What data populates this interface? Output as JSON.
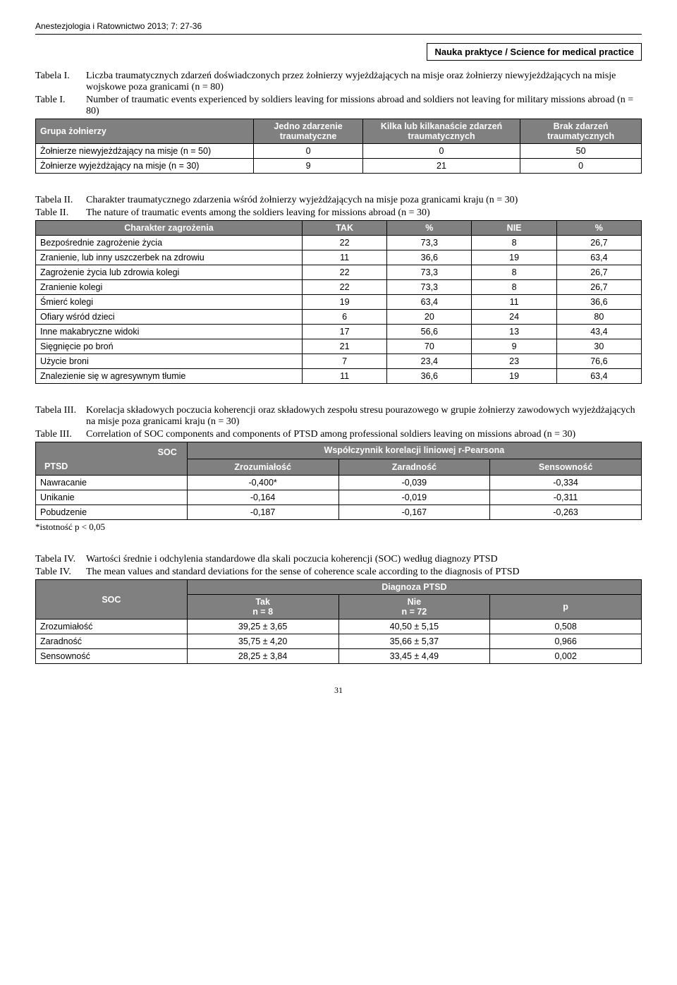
{
  "header": {
    "journal": "Anestezjologia i Ratownictwo 2013; 7: 27-36",
    "subtitle": "Nauka praktyce / Science for medical practice"
  },
  "table1": {
    "caption_pl_label": "Tabela I.",
    "caption_pl_text": "Liczba traumatycznych zdarzeń doświadczonych przez żołnierzy wyjeżdżających na misje oraz żołnierzy niewyjeżdżających na misje wojskowe poza granicami (n = 80)",
    "caption_en_label": "Table I.",
    "caption_en_text": "Number of traumatic events experienced by soldiers leaving for missions abroad and soldiers not leaving for military missions abroad (n = 80)",
    "headers": {
      "c0": "Grupa żołnierzy",
      "c1": "Jedno zdarzenie traumatyczne",
      "c2": "Kilka lub kilkanaście zdarzeń traumatycznych",
      "c3": "Brak zdarzeń traumatycznych"
    },
    "rows": [
      {
        "label": "Żołnierze niewyjeżdżający na misje (n = 50)",
        "v1": "0",
        "v2": "0",
        "v3": "50"
      },
      {
        "label": "Żołnierze wyjeżdżający na misje (n = 30)",
        "v1": "9",
        "v2": "21",
        "v3": "0"
      }
    ]
  },
  "table2": {
    "caption_pl_label": "Tabela II.",
    "caption_pl_text": "Charakter traumatycznego zdarzenia wśród żołnierzy wyjeżdżających na misje poza granicami kraju (n = 30)",
    "caption_en_label": "Table II.",
    "caption_en_text": "The nature of traumatic events among the soldiers leaving for missions abroad (n = 30)",
    "headers": {
      "c0": "Charakter zagrożenia",
      "c1": "TAK",
      "c2": "%",
      "c3": "NIE",
      "c4": "%"
    },
    "rows": [
      {
        "label": "Bezpośrednie zagrożenie życia",
        "v1": "22",
        "v2": "73,3",
        "v3": "8",
        "v4": "26,7"
      },
      {
        "label": "Zranienie, lub inny uszczerbek na zdrowiu",
        "v1": "11",
        "v2": "36,6",
        "v3": "19",
        "v4": "63,4"
      },
      {
        "label": "Zagrożenie życia lub zdrowia kolegi",
        "v1": "22",
        "v2": "73,3",
        "v3": "8",
        "v4": "26,7"
      },
      {
        "label": "Zranienie kolegi",
        "v1": "22",
        "v2": "73,3",
        "v3": "8",
        "v4": "26,7"
      },
      {
        "label": "Śmierć kolegi",
        "v1": "19",
        "v2": "63,4",
        "v3": "11",
        "v4": "36,6"
      },
      {
        "label": "Ofiary wśród dzieci",
        "v1": "6",
        "v2": "20",
        "v3": "24",
        "v4": "80"
      },
      {
        "label": "Inne makabryczne widoki",
        "v1": "17",
        "v2": "56,6",
        "v3": "13",
        "v4": "43,4"
      },
      {
        "label": "Sięgnięcie po broń",
        "v1": "21",
        "v2": "70",
        "v3": "9",
        "v4": "30"
      },
      {
        "label": "Użycie broni",
        "v1": "7",
        "v2": "23,4",
        "v3": "23",
        "v4": "76,6"
      },
      {
        "label": "Znalezienie się w agresywnym tłumie",
        "v1": "11",
        "v2": "36,6",
        "v3": "19",
        "v4": "63,4"
      }
    ]
  },
  "table3": {
    "caption_pl_label": "Tabela III.",
    "caption_pl_text": "Korelacja składowych poczucia koherencji oraz składowych zespołu stresu pourazowego w grupie żołnierzy zawodowych wyjeżdżających na misje poza granicami kraju (n = 30)",
    "caption_en_label": "Table III.",
    "caption_en_text": "Correlation of SOC components and components of PTSD among professional soldiers leaving on missions abroad (n = 30)",
    "super_header": "Współczynnik korelacji liniowej r-Pearsona",
    "corner_soc": "SOC",
    "corner_ptsd": "PTSD",
    "cols": {
      "c1": "Zrozumiałość",
      "c2": "Zaradność",
      "c3": "Sensowność"
    },
    "rows": [
      {
        "label": "Nawracanie",
        "v1": "-0,400*",
        "v2": "-0,039",
        "v3": "-0,334"
      },
      {
        "label": "Unikanie",
        "v1": "-0,164",
        "v2": "-0,019",
        "v3": "-0,311"
      },
      {
        "label": "Pobudzenie",
        "v1": "-0,187",
        "v2": "-0,167",
        "v3": "-0,263"
      }
    ],
    "footnote": "*istotność p < 0,05"
  },
  "table4": {
    "caption_pl_label": "Tabela IV.",
    "caption_pl_text": "Wartości średnie i odchylenia standardowe dla skali poczucia koherencji (SOC) według diagnozy PTSD",
    "caption_en_label": "Table IV.",
    "caption_en_text": "The mean values and standard deviations for the sense of coherence scale according to the diagnosis of PTSD",
    "super_header": "Diagnoza PTSD",
    "row_header": "SOC",
    "cols": {
      "c1a": "Tak",
      "c1b": "n = 8",
      "c2a": "Nie",
      "c2b": "n = 72",
      "c3": "p"
    },
    "rows": [
      {
        "label": "Zrozumiałość",
        "v1": "39,25 ± 3,65",
        "v2": "40,50 ± 5,15",
        "v3": "0,508"
      },
      {
        "label": "Zaradność",
        "v1": "35,75 ± 4,20",
        "v2": "35,66 ± 5,37",
        "v3": "0,966"
      },
      {
        "label": "Sensowność",
        "v1": "28,25 ± 3,84",
        "v2": "33,45 ± 4,49",
        "v3": "0,002"
      }
    ]
  },
  "page_number": "31"
}
